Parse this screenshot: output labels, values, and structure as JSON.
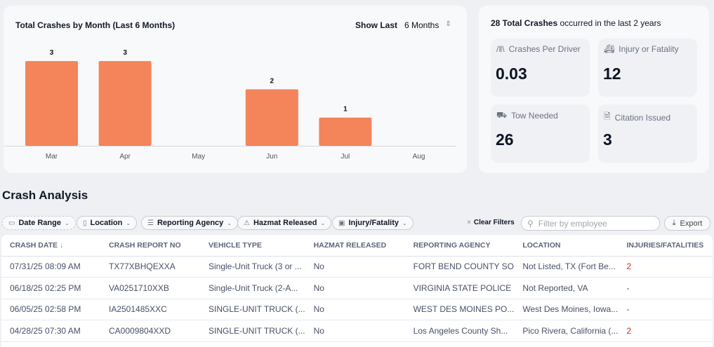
{
  "chart_card": {
    "title": "Total Crashes by Month (Last 6 Months)",
    "show_last_label": "Show Last",
    "range_value": "6 Months"
  },
  "chart_data": {
    "type": "bar",
    "title": "Total Crashes by Month (Last 6 Months)",
    "categories": [
      "Mar",
      "Apr",
      "May",
      "Jun",
      "Jul",
      "Aug"
    ],
    "values": [
      3,
      3,
      0,
      2,
      1,
      0
    ],
    "data_labels": [
      "3",
      "3",
      "",
      "2",
      "1",
      ""
    ],
    "ylim": [
      0,
      3
    ],
    "grid": false,
    "bar_color": "#f4845a"
  },
  "stats": {
    "headline_bold": "28 Total Crashes",
    "headline_rest": " occurred in the last 2 years",
    "tiles": [
      {
        "label": "Crashes Per Driver",
        "value": "0.03",
        "icon": "road-icon"
      },
      {
        "label": "Injury or Fatality",
        "value": "12",
        "icon": "ambulance-icon"
      },
      {
        "label": "Tow Needed",
        "value": "26",
        "icon": "tow-truck-icon"
      },
      {
        "label": "Citation Issued",
        "value": "3",
        "icon": "document-icon"
      }
    ]
  },
  "section_title": "Crash Analysis",
  "filters": [
    {
      "label": "Date Range",
      "icon": "calendar-icon"
    },
    {
      "label": "Location",
      "icon": "map-icon"
    },
    {
      "label": "Reporting Agency",
      "icon": "list-icon"
    },
    {
      "label": "Hazmat Released",
      "icon": "warning-icon"
    },
    {
      "label": "Injury/Fatality",
      "icon": "ambulance-icon"
    }
  ],
  "clear_filters": "Clear Filters",
  "search": {
    "placeholder": "Filter by employee"
  },
  "export_label": "Export",
  "table": {
    "columns": [
      "CRASH DATE",
      "CRASH REPORT NO",
      "VEHICLE TYPE",
      "HAZMAT RELEASED",
      "REPORTING AGENCY",
      "LOCATION",
      "INJURIES/FATALITIES"
    ],
    "rows": [
      [
        "07/31/25 08:09 AM",
        "TX77XBHQEXXA",
        "Single-Unit Truck (3 or ...",
        "No",
        "FORT BEND COUNTY SO",
        "Not Listed, TX (Fort Be...",
        "2"
      ],
      [
        "06/18/25 02:25 PM",
        "VA0251710XXB",
        "Single-Unit Truck (2-A...",
        "No",
        "VIRGINIA STATE POLICE",
        "Not Reported, VA",
        "-"
      ],
      [
        "06/05/25 02:58 PM",
        "IA2501485XXC",
        "SINGLE-UNIT TRUCK (...",
        "No",
        "WEST DES MOINES PO...",
        "West Des Moines, Iowa...",
        "-"
      ],
      [
        "04/28/25 07:30 AM",
        "CA0009804XXD",
        "SINGLE-UNIT TRUCK (...",
        "No",
        "Los Angeles County Sh...",
        "Pico Rivera, California (...",
        "2"
      ]
    ]
  },
  "colors": {
    "bar": "#f4845a",
    "injury_count": "#d02a2a"
  }
}
